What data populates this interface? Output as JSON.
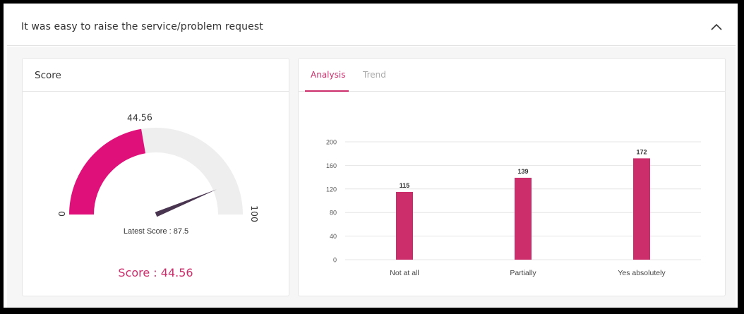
{
  "header": {
    "title": "It was easy to raise the service/problem request",
    "collapse_icon": "chevron-up-icon"
  },
  "score_card": {
    "title": "Score",
    "gauge": {
      "value": 44.56,
      "value_label": "44.56",
      "min_label": "0",
      "max_label": "100",
      "min": 0,
      "max": 100,
      "needle_value": 87.5,
      "latest_label": "Latest Score : 87.5",
      "fill_color": "#e0107a",
      "track_color": "#eeeeee",
      "needle_color": "#4a3550"
    },
    "score_text": "Score : 44.56"
  },
  "analysis_card": {
    "tabs": [
      {
        "label": "Analysis",
        "active": true
      },
      {
        "label": "Trend",
        "active": false
      }
    ]
  },
  "chart_data": {
    "type": "bar",
    "categories": [
      "Not at all",
      "Partially",
      "Yes absolutely"
    ],
    "values": [
      115,
      139,
      172
    ],
    "data_labels": [
      "115",
      "139",
      "172"
    ],
    "yticks": [
      "0",
      "40",
      "80",
      "120",
      "160",
      "200"
    ],
    "ylim": [
      0,
      200
    ],
    "grid": true,
    "bar_color": "#cc2e6b",
    "title": "",
    "xlabel": "",
    "ylabel": ""
  }
}
